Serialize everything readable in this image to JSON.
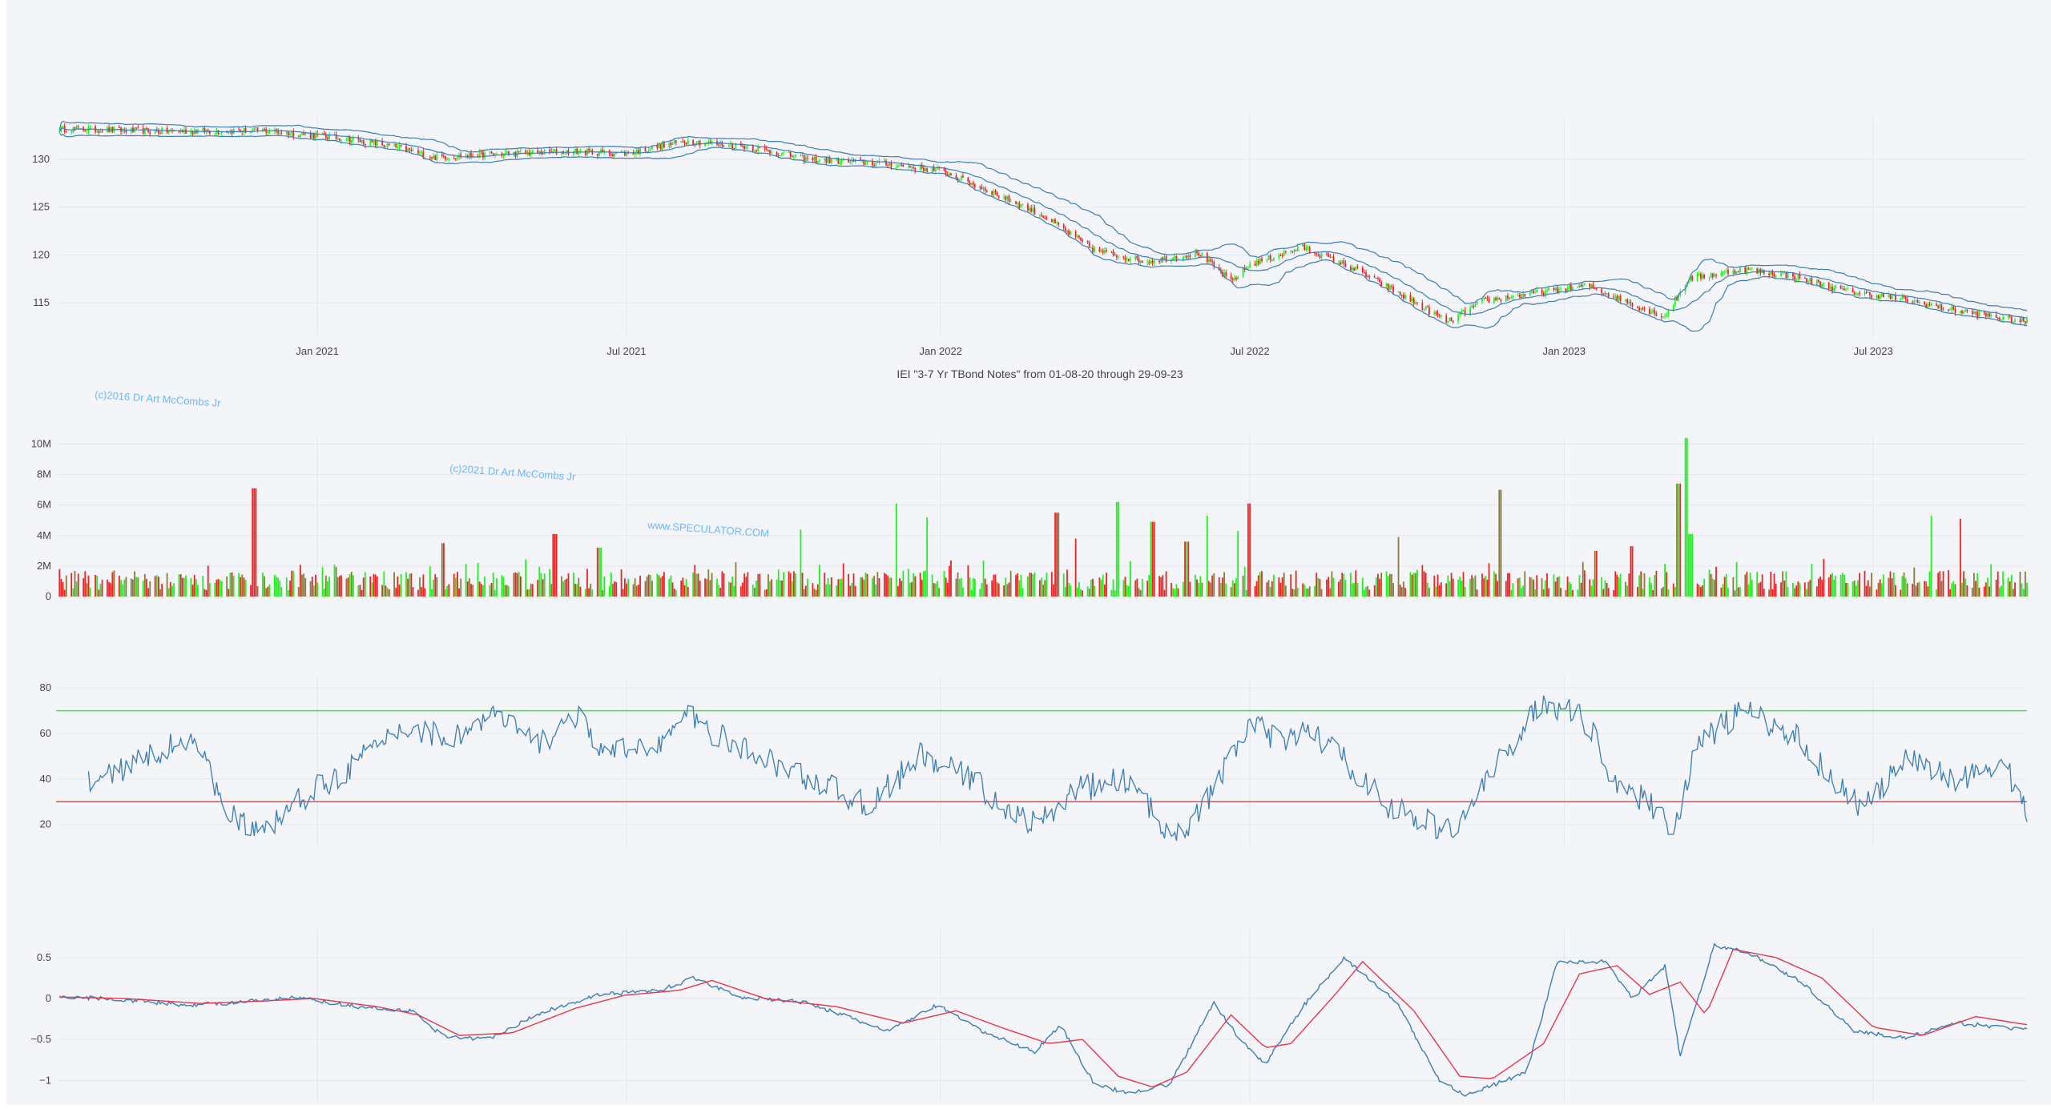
{
  "title": "IEI \"3-7 Yr TBond Notes\" from 01-08-20 through 29-09-23",
  "watermarks": [
    "(c)2016 Dr Art McCombs Jr",
    "(c)2021 Dr Art McCombs Jr",
    "www.SPECULATOR.COM"
  ],
  "colors": {
    "background": "#f4f5f9",
    "grid": "#e3e6ee",
    "up": "#22ee22",
    "down": "#ee2222",
    "volume_mixed": "#8a7a3a",
    "band": "#3c7cb4",
    "rsi_line": "#3c7cb4",
    "rsi_upper": "#44dd44",
    "rsi_lower": "#ee4444",
    "macd": "#3c7cb4",
    "signal": "#e6364c",
    "watermark": "#6bb7ff"
  },
  "x_axis": {
    "start": "2020-08-01",
    "end": "2023-09-29",
    "ticks": [
      {
        "date": "2021-01-01",
        "label": "Jan 2021"
      },
      {
        "date": "2021-07-01",
        "label": "Jul 2021"
      },
      {
        "date": "2022-01-01",
        "label": "Jan 2022"
      },
      {
        "date": "2022-07-01",
        "label": "Jul 2022"
      },
      {
        "date": "2023-01-01",
        "label": "Jan 2023"
      },
      {
        "date": "2023-07-01",
        "label": "Jul 2023"
      }
    ]
  },
  "chart_data": [
    {
      "type": "candlestick",
      "name": "price",
      "ylim": [
        111.5,
        134.5
      ],
      "yticks": [
        115,
        120,
        125,
        130
      ],
      "bollinger_bands": true,
      "close_path": [
        [
          "2020-08-01",
          133.2
        ],
        [
          "2020-10-01",
          132.9
        ],
        [
          "2020-12-01",
          133.0
        ],
        [
          "2021-01-15",
          132.2
        ],
        [
          "2021-02-15",
          131.3
        ],
        [
          "2021-03-10",
          130.2
        ],
        [
          "2021-04-10",
          130.5
        ],
        [
          "2021-06-01",
          130.8
        ],
        [
          "2021-07-01",
          130.6
        ],
        [
          "2021-08-05",
          131.9
        ],
        [
          "2021-09-10",
          131.3
        ],
        [
          "2021-10-15",
          130.0
        ],
        [
          "2021-12-01",
          129.5
        ],
        [
          "2022-01-01",
          128.8
        ],
        [
          "2022-02-01",
          126.5
        ],
        [
          "2022-03-01",
          124.2
        ],
        [
          "2022-04-01",
          120.5
        ],
        [
          "2022-05-01",
          119.3
        ],
        [
          "2022-06-01",
          120.2
        ],
        [
          "2022-06-20",
          117.2
        ],
        [
          "2022-07-01",
          119.0
        ],
        [
          "2022-08-01",
          120.8
        ],
        [
          "2022-09-01",
          118.5
        ],
        [
          "2022-10-01",
          115.5
        ],
        [
          "2022-10-25",
          113.0
        ],
        [
          "2022-11-15",
          115.2
        ],
        [
          "2022-12-15",
          116.0
        ],
        [
          "2023-01-15",
          116.8
        ],
        [
          "2023-02-15",
          114.5
        ],
        [
          "2023-03-01",
          113.6
        ],
        [
          "2023-03-15",
          117.5
        ],
        [
          "2023-04-15",
          118.5
        ],
        [
          "2023-05-15",
          117.8
        ],
        [
          "2023-06-15",
          116.2
        ],
        [
          "2023-07-15",
          115.5
        ],
        [
          "2023-08-15",
          114.3
        ],
        [
          "2023-09-29",
          113.0
        ]
      ]
    },
    {
      "type": "bar",
      "name": "volume",
      "ylim": [
        0,
        10500000
      ],
      "yticks": [
        {
          "value": 0,
          "label": "0"
        },
        {
          "value": 2000000,
          "label": "2M"
        },
        {
          "value": 4000000,
          "label": "4M"
        },
        {
          "value": 6000000,
          "label": "6M"
        },
        {
          "value": 8000000,
          "label": "8M"
        },
        {
          "value": 10000000,
          "label": "10M"
        }
      ],
      "spikes": [
        [
          "2020-11-25",
          7100000
        ],
        [
          "2021-03-15",
          3500000
        ],
        [
          "2021-05-20",
          4100000
        ],
        [
          "2021-06-15",
          3200000
        ],
        [
          "2021-10-10",
          4400000
        ],
        [
          "2021-12-05",
          6100000
        ],
        [
          "2021-12-25",
          5200000
        ],
        [
          "2022-03-10",
          5500000
        ],
        [
          "2022-03-20",
          3800000
        ],
        [
          "2022-04-15",
          6200000
        ],
        [
          "2022-05-05",
          4900000
        ],
        [
          "2022-05-25",
          3600000
        ],
        [
          "2022-06-05",
          5300000
        ],
        [
          "2022-06-25",
          4300000
        ],
        [
          "2022-07-01",
          6100000
        ],
        [
          "2022-09-25",
          3900000
        ],
        [
          "2022-11-25",
          7000000
        ],
        [
          "2023-01-20",
          3000000
        ],
        [
          "2023-02-10",
          3300000
        ],
        [
          "2023-03-13",
          10400000
        ],
        [
          "2023-03-09",
          7400000
        ],
        [
          "2023-03-16",
          4100000
        ],
        [
          "2023-08-05",
          5300000
        ],
        [
          "2023-08-20",
          5100000
        ]
      ]
    },
    {
      "type": "line",
      "name": "rsi",
      "ylim": [
        10,
        85
      ],
      "yticks": [
        20,
        40,
        60,
        80
      ],
      "levels": [
        70,
        30
      ],
      "path": [
        [
          "2020-08-20",
          38
        ],
        [
          "2020-09-20",
          48
        ],
        [
          "2020-10-20",
          60
        ],
        [
          "2020-11-01",
          38
        ],
        [
          "2020-11-15",
          22
        ],
        [
          "2020-11-28",
          15
        ],
        [
          "2020-12-20",
          30
        ],
        [
          "2021-01-20",
          45
        ],
        [
          "2021-02-20",
          63
        ],
        [
          "2021-03-20",
          58
        ],
        [
          "2021-04-15",
          68
        ],
        [
          "2021-05-10",
          55
        ],
        [
          "2021-06-01",
          68
        ],
        [
          "2021-06-20",
          50
        ],
        [
          "2021-07-25",
          58
        ],
        [
          "2021-08-05",
          68
        ],
        [
          "2021-09-01",
          55
        ],
        [
          "2021-10-01",
          45
        ],
        [
          "2021-11-01",
          35
        ],
        [
          "2021-11-20",
          28
        ],
        [
          "2021-12-20",
          50
        ],
        [
          "2022-01-20",
          40
        ],
        [
          "2022-02-10",
          25
        ],
        [
          "2022-02-28",
          20
        ],
        [
          "2022-03-20",
          35
        ],
        [
          "2022-04-20",
          40
        ],
        [
          "2022-05-10",
          20
        ],
        [
          "2022-05-25",
          18
        ],
        [
          "2022-06-10",
          35
        ],
        [
          "2022-07-01",
          65
        ],
        [
          "2022-07-20",
          55
        ],
        [
          "2022-08-05",
          62
        ],
        [
          "2022-08-30",
          45
        ],
        [
          "2022-09-20",
          28
        ],
        [
          "2022-10-15",
          20
        ],
        [
          "2022-10-28",
          17
        ],
        [
          "2022-12-01",
          55
        ],
        [
          "2022-12-20",
          75
        ],
        [
          "2023-01-15",
          65
        ],
        [
          "2023-01-30",
          40
        ],
        [
          "2023-02-28",
          25
        ],
        [
          "2023-03-06",
          17
        ],
        [
          "2023-03-20",
          55
        ],
        [
          "2023-04-15",
          70
        ],
        [
          "2023-05-15",
          60
        ],
        [
          "2023-06-10",
          38
        ],
        [
          "2023-06-25",
          27
        ],
        [
          "2023-07-20",
          48
        ],
        [
          "2023-08-20",
          40
        ],
        [
          "2023-09-15",
          48
        ],
        [
          "2023-09-29",
          25
        ]
      ]
    },
    {
      "type": "line",
      "name": "macd",
      "ylim": [
        -1.28,
        0.85
      ],
      "yticks": [
        {
          "value": -1,
          "label": "−1"
        },
        {
          "value": -0.5,
          "label": "−0.5"
        },
        {
          "value": 0,
          "label": "0"
        },
        {
          "value": 0.5,
          "label": "0.5"
        }
      ],
      "series": [
        {
          "key": "macd",
          "path": [
            [
              "2020-08-01",
              0.02
            ],
            [
              "2020-09-01",
              0.0
            ],
            [
              "2020-10-15",
              -0.08
            ],
            [
              "2020-11-15",
              -0.05
            ],
            [
              "2020-12-20",
              0.01
            ],
            [
              "2021-01-25",
              -0.1
            ],
            [
              "2021-02-25",
              -0.15
            ],
            [
              "2021-03-15",
              -0.45
            ],
            [
              "2021-04-10",
              -0.5
            ],
            [
              "2021-05-15",
              -0.15
            ],
            [
              "2021-06-15",
              0.05
            ],
            [
              "2021-07-20",
              0.1
            ],
            [
              "2021-08-10",
              0.25
            ],
            [
              "2021-09-05",
              0.02
            ],
            [
              "2021-10-15",
              -0.05
            ],
            [
              "2021-12-01",
              -0.4
            ],
            [
              "2021-12-30",
              -0.08
            ],
            [
              "2022-01-25",
              -0.4
            ],
            [
              "2022-02-25",
              -0.65
            ],
            [
              "2022-03-12",
              -0.32
            ],
            [
              "2022-04-01",
              -1.05
            ],
            [
              "2022-04-20",
              -1.15
            ],
            [
              "2022-05-15",
              -1.05
            ],
            [
              "2022-06-10",
              -0.05
            ],
            [
              "2022-06-25",
              -0.5
            ],
            [
              "2022-07-10",
              -0.8
            ],
            [
              "2022-08-01",
              -0.1
            ],
            [
              "2022-08-25",
              0.5
            ],
            [
              "2022-09-25",
              -0.05
            ],
            [
              "2022-10-20",
              -1.0
            ],
            [
              "2022-11-05",
              -1.18
            ],
            [
              "2022-12-10",
              -0.9
            ],
            [
              "2022-12-28",
              0.45
            ],
            [
              "2023-01-25",
              0.45
            ],
            [
              "2023-02-10",
              0.0
            ],
            [
              "2023-03-01",
              0.4
            ],
            [
              "2023-03-10",
              -0.7
            ],
            [
              "2023-03-30",
              0.65
            ],
            [
              "2023-04-20",
              0.55
            ],
            [
              "2023-05-20",
              0.2
            ],
            [
              "2023-06-20",
              -0.4
            ],
            [
              "2023-07-20",
              -0.48
            ],
            [
              "2023-08-20",
              -0.3
            ],
            [
              "2023-09-29",
              -0.38
            ]
          ]
        },
        {
          "key": "signal",
          "path": [
            [
              "2020-08-01",
              0.02
            ],
            [
              "2020-09-10",
              0.0
            ],
            [
              "2020-10-25",
              -0.06
            ],
            [
              "2020-12-01",
              -0.03
            ],
            [
              "2020-12-30",
              0.0
            ],
            [
              "2021-02-05",
              -0.1
            ],
            [
              "2021-03-01",
              -0.2
            ],
            [
              "2021-03-25",
              -0.45
            ],
            [
              "2021-04-25",
              -0.42
            ],
            [
              "2021-06-01",
              -0.12
            ],
            [
              "2021-06-30",
              0.04
            ],
            [
              "2021-08-01",
              0.1
            ],
            [
              "2021-08-20",
              0.22
            ],
            [
              "2021-09-20",
              0.0
            ],
            [
              "2021-11-01",
              -0.1
            ],
            [
              "2021-12-10",
              -0.3
            ],
            [
              "2022-01-10",
              -0.15
            ],
            [
              "2022-02-05",
              -0.35
            ],
            [
              "2022-03-05",
              -0.55
            ],
            [
              "2022-03-25",
              -0.5
            ],
            [
              "2022-04-15",
              -0.95
            ],
            [
              "2022-05-05",
              -1.08
            ],
            [
              "2022-05-25",
              -0.9
            ],
            [
              "2022-06-20",
              -0.2
            ],
            [
              "2022-07-10",
              -0.6
            ],
            [
              "2022-07-25",
              -0.55
            ],
            [
              "2022-08-20",
              0.05
            ],
            [
              "2022-09-05",
              0.45
            ],
            [
              "2022-10-05",
              -0.15
            ],
            [
              "2022-11-01",
              -0.95
            ],
            [
              "2022-11-20",
              -0.98
            ],
            [
              "2022-12-20",
              -0.55
            ],
            [
              "2023-01-10",
              0.3
            ],
            [
              "2023-02-01",
              0.4
            ],
            [
              "2023-02-20",
              0.05
            ],
            [
              "2023-03-10",
              0.2
            ],
            [
              "2023-03-25",
              -0.2
            ],
            [
              "2023-04-10",
              0.6
            ],
            [
              "2023-05-05",
              0.5
            ],
            [
              "2023-06-01",
              0.25
            ],
            [
              "2023-07-01",
              -0.35
            ],
            [
              "2023-07-30",
              -0.45
            ],
            [
              "2023-08-30",
              -0.22
            ],
            [
              "2023-09-29",
              -0.32
            ]
          ]
        }
      ]
    }
  ]
}
